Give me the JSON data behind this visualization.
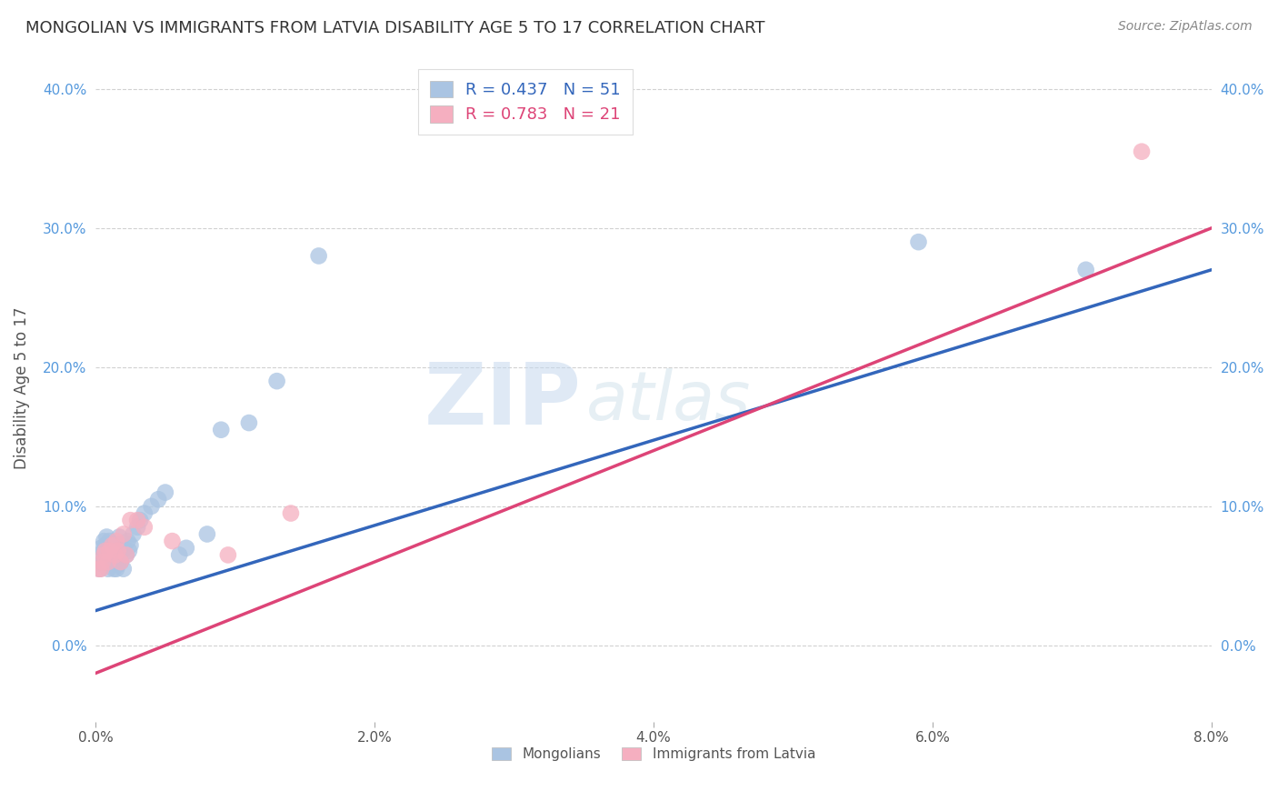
{
  "title": "MONGOLIAN VS IMMIGRANTS FROM LATVIA DISABILITY AGE 5 TO 17 CORRELATION CHART",
  "source": "Source: ZipAtlas.com",
  "ylabel": "Disability Age 5 to 17",
  "x_min": 0.0,
  "x_max": 0.08,
  "y_min": -0.055,
  "y_max": 0.425,
  "x_ticks": [
    0.0,
    0.02,
    0.04,
    0.06,
    0.08
  ],
  "x_tick_labels": [
    "0.0%",
    "2.0%",
    "4.0%",
    "6.0%",
    "8.0%"
  ],
  "y_ticks": [
    0.0,
    0.1,
    0.2,
    0.3,
    0.4
  ],
  "y_tick_labels": [
    "0.0%",
    "10.0%",
    "20.0%",
    "30.0%",
    "40.0%"
  ],
  "mongolian_color": "#aac4e2",
  "latvian_color": "#f5afc0",
  "mongolian_line_color": "#3366bb",
  "latvian_line_color": "#dd4477",
  "mongolian_r": 0.437,
  "mongolian_n": 51,
  "latvian_r": 0.783,
  "latvian_n": 21,
  "mongolian_x": [
    0.0002,
    0.0003,
    0.0004,
    0.0005,
    0.0006,
    0.0006,
    0.0007,
    0.0007,
    0.0008,
    0.0008,
    0.0009,
    0.0009,
    0.001,
    0.001,
    0.001,
    0.0012,
    0.0012,
    0.0013,
    0.0013,
    0.0014,
    0.0014,
    0.0015,
    0.0015,
    0.0016,
    0.0016,
    0.0017,
    0.0017,
    0.0018,
    0.0019,
    0.002,
    0.002,
    0.0022,
    0.0023,
    0.0024,
    0.0025,
    0.0027,
    0.003,
    0.0032,
    0.0035,
    0.004,
    0.0045,
    0.005,
    0.006,
    0.0065,
    0.008,
    0.009,
    0.011,
    0.013,
    0.016,
    0.059,
    0.071
  ],
  "mongolian_y": [
    0.065,
    0.055,
    0.07,
    0.06,
    0.075,
    0.058,
    0.065,
    0.072,
    0.068,
    0.078,
    0.055,
    0.07,
    0.06,
    0.068,
    0.075,
    0.062,
    0.072,
    0.055,
    0.068,
    0.06,
    0.07,
    0.055,
    0.065,
    0.058,
    0.072,
    0.065,
    0.078,
    0.06,
    0.068,
    0.055,
    0.07,
    0.065,
    0.075,
    0.068,
    0.072,
    0.08,
    0.085,
    0.09,
    0.095,
    0.1,
    0.105,
    0.11,
    0.065,
    0.07,
    0.08,
    0.155,
    0.16,
    0.19,
    0.28,
    0.29,
    0.27
  ],
  "latvian_x": [
    0.0002,
    0.0004,
    0.0005,
    0.0006,
    0.0007,
    0.0009,
    0.001,
    0.0012,
    0.0014,
    0.0015,
    0.0016,
    0.0018,
    0.002,
    0.0022,
    0.0025,
    0.003,
    0.0035,
    0.0055,
    0.0095,
    0.014,
    0.075
  ],
  "latvian_y": [
    0.055,
    0.055,
    0.06,
    0.065,
    0.068,
    0.06,
    0.068,
    0.072,
    0.065,
    0.075,
    0.068,
    0.06,
    0.08,
    0.065,
    0.09,
    0.09,
    0.085,
    0.075,
    0.065,
    0.095,
    0.355
  ],
  "mongolian_line_x0": 0.0,
  "mongolian_line_y0": 0.025,
  "mongolian_line_x1": 0.08,
  "mongolian_line_y1": 0.27,
  "latvian_line_x0": 0.0,
  "latvian_line_y0": -0.02,
  "latvian_line_x1": 0.08,
  "latvian_line_y1": 0.3,
  "watermark_zip": "ZIP",
  "watermark_atlas": "atlas",
  "background_color": "#ffffff",
  "grid_color": "#cccccc",
  "tick_color": "#aaaaaa",
  "label_color": "#555555",
  "axis_label_color": "#5599dd"
}
